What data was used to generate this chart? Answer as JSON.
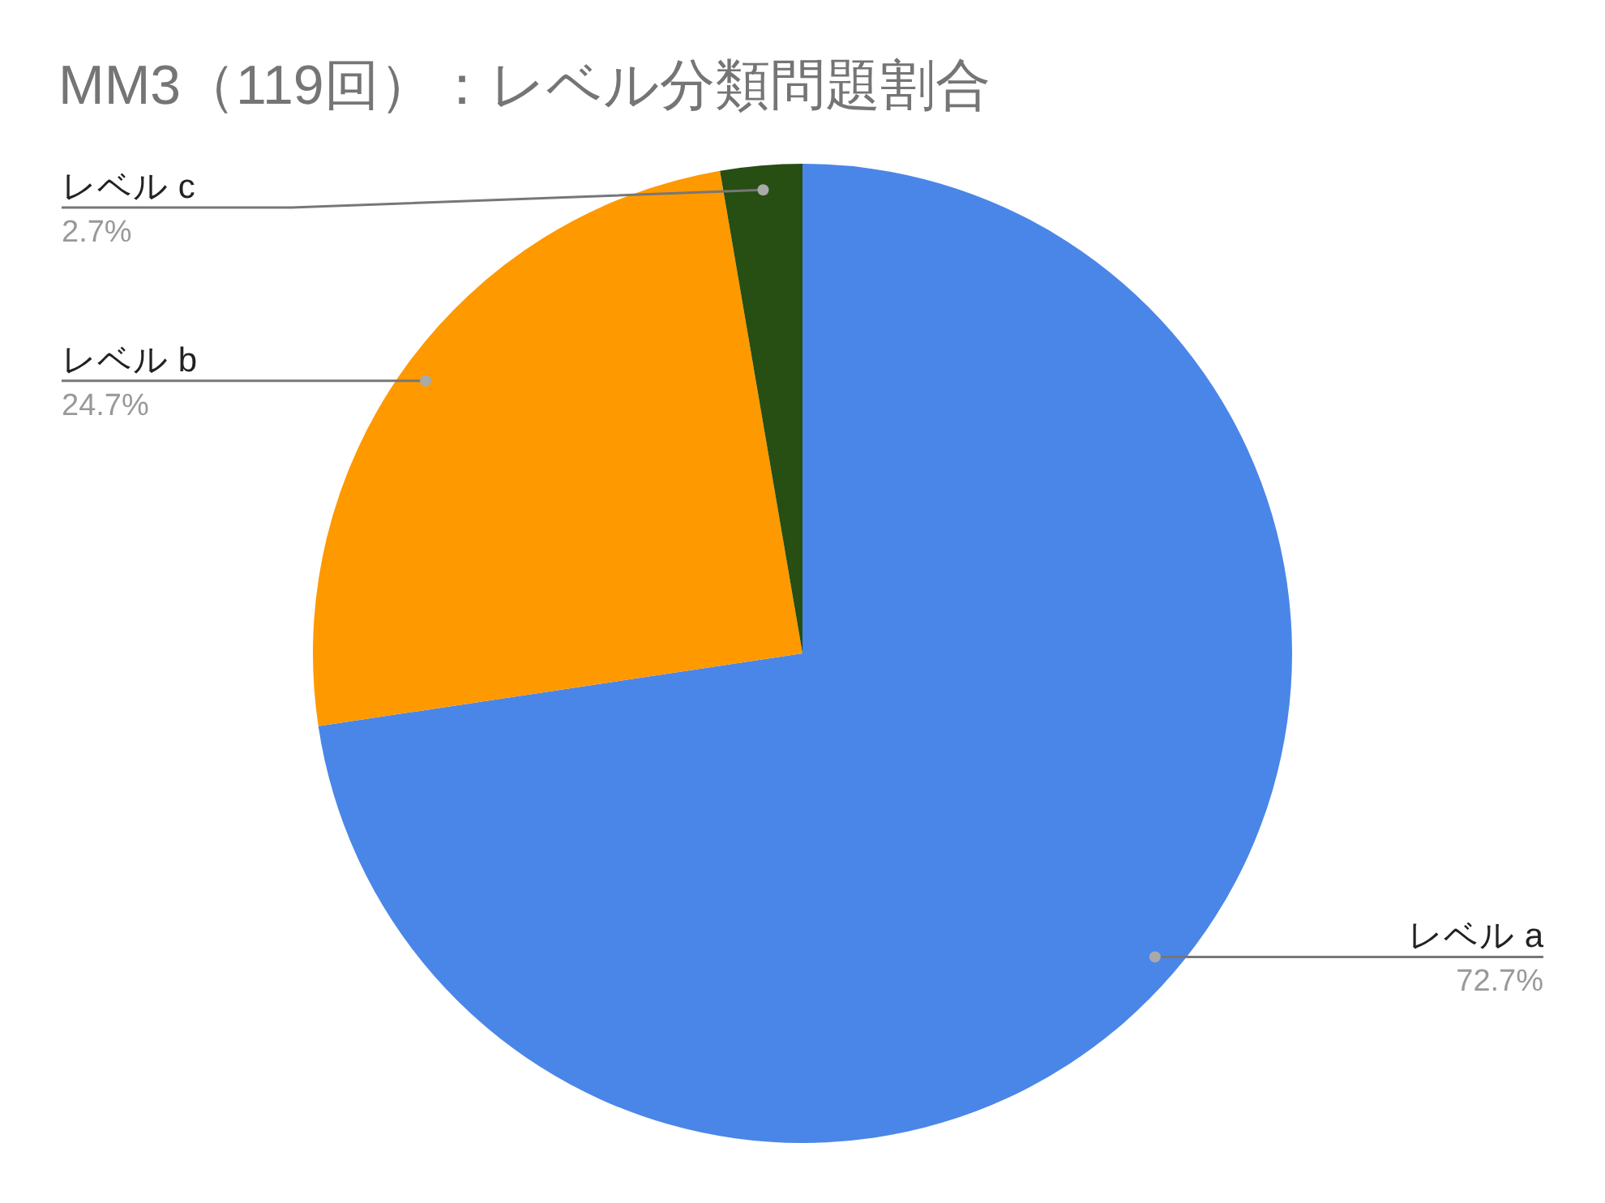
{
  "chart_data": {
    "type": "pie",
    "title": "MM3（119回）：レベル分類問題割合",
    "categories": [
      "レベル a",
      "レベル b",
      "レベル c"
    ],
    "values": [
      72.7,
      24.7,
      2.7
    ],
    "colors": [
      "#4a86e8",
      "#ff9900",
      "#274e13"
    ],
    "value_labels": [
      "72.7%",
      "24.7%",
      "2.7%"
    ],
    "legend": false
  }
}
